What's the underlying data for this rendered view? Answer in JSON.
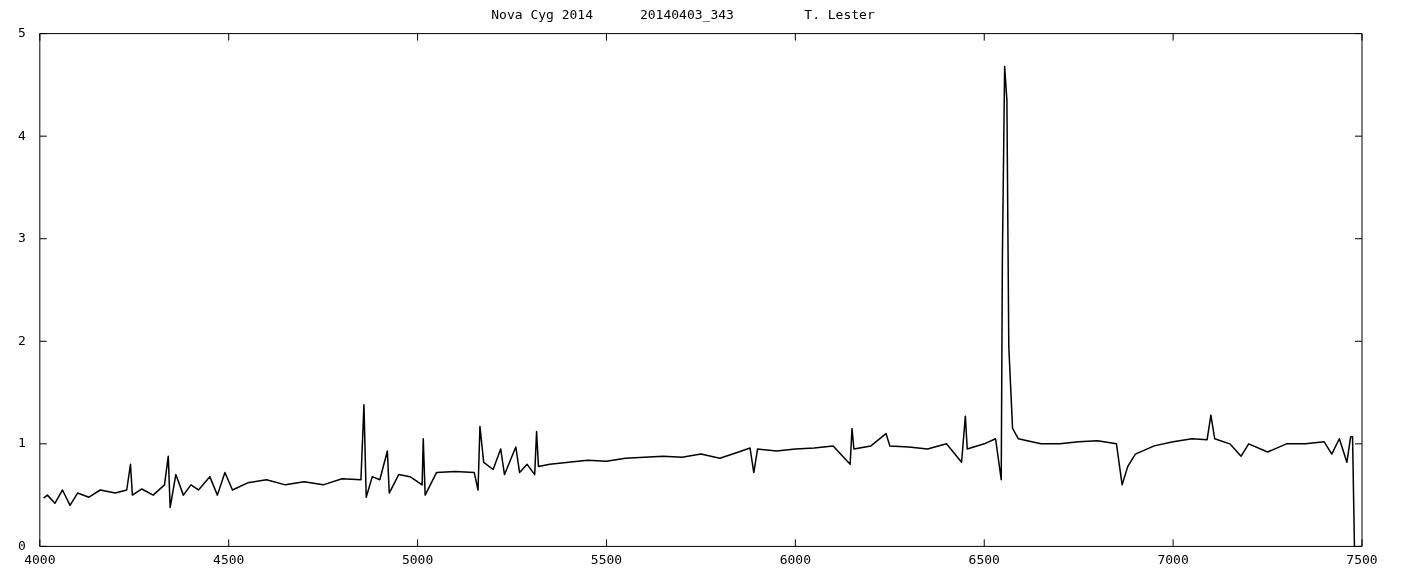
{
  "chart_data": {
    "type": "line",
    "title": "Nova Cyg 2014      20140403_343         T. Lester",
    "xlim": [
      4000,
      7500
    ],
    "xticks": [
      4000,
      4500,
      5000,
      5500,
      6000,
      6500,
      7000,
      7500
    ],
    "ylim": [
      0,
      5
    ],
    "yticks": [
      0,
      1,
      2,
      3,
      4,
      5
    ],
    "legend": false,
    "marker": "none",
    "line_style": "solid",
    "series": [
      {
        "color": "#000000",
        "x": [
          4010,
          4020,
          4040,
          4060,
          4080,
          4100,
          4130,
          4160,
          4200,
          4230,
          4240,
          4245,
          4270,
          4300,
          4330,
          4340,
          4345,
          4360,
          4380,
          4400,
          4420,
          4450,
          4470,
          4490,
          4510,
          4550,
          4600,
          4650,
          4700,
          4750,
          4800,
          4850,
          4858,
          4864,
          4880,
          4900,
          4920,
          4925,
          4950,
          4980,
          5012,
          5015,
          5020,
          5050,
          5100,
          5150,
          5160,
          5165,
          5175,
          5200,
          5220,
          5230,
          5260,
          5270,
          5290,
          5310,
          5315,
          5320,
          5350,
          5400,
          5450,
          5500,
          5550,
          5600,
          5650,
          5700,
          5750,
          5800,
          5850,
          5880,
          5890,
          5900,
          5950,
          6000,
          6050,
          6100,
          6145,
          6150,
          6155,
          6200,
          6240,
          6250,
          6300,
          6350,
          6400,
          6440,
          6450,
          6455,
          6500,
          6530,
          6545,
          6548,
          6554,
          6560,
          6565,
          6575,
          6590,
          6650,
          6700,
          6750,
          6800,
          6850,
          6865,
          6880,
          6900,
          6950,
          7000,
          7050,
          7090,
          7100,
          7110,
          7150,
          7180,
          7200,
          7250,
          7300,
          7350,
          7400,
          7420,
          7440,
          7460,
          7470,
          7475,
          7480
        ],
        "values": [
          0.47,
          0.5,
          0.42,
          0.55,
          0.4,
          0.52,
          0.48,
          0.55,
          0.52,
          0.55,
          0.8,
          0.5,
          0.56,
          0.5,
          0.6,
          0.88,
          0.38,
          0.7,
          0.5,
          0.6,
          0.55,
          0.68,
          0.5,
          0.72,
          0.55,
          0.62,
          0.65,
          0.6,
          0.63,
          0.6,
          0.66,
          0.65,
          1.38,
          0.48,
          0.68,
          0.65,
          0.93,
          0.52,
          0.7,
          0.68,
          0.6,
          1.05,
          0.5,
          0.72,
          0.73,
          0.72,
          0.55,
          1.17,
          0.82,
          0.75,
          0.95,
          0.7,
          0.97,
          0.72,
          0.8,
          0.7,
          1.12,
          0.78,
          0.8,
          0.82,
          0.84,
          0.83,
          0.86,
          0.87,
          0.88,
          0.87,
          0.9,
          0.86,
          0.92,
          0.96,
          0.72,
          0.95,
          0.93,
          0.95,
          0.96,
          0.98,
          0.8,
          1.15,
          0.95,
          0.98,
          1.1,
          0.98,
          0.97,
          0.95,
          1,
          0.82,
          1.27,
          0.95,
          1,
          1.05,
          0.65,
          2.8,
          4.68,
          4.35,
          1.95,
          1.15,
          1.05,
          1,
          1,
          1.02,
          1.03,
          1,
          0.6,
          0.78,
          0.9,
          0.98,
          1.02,
          1.05,
          1.04,
          1.28,
          1.05,
          1,
          0.88,
          1,
          0.92,
          1,
          1,
          1.02,
          0.9,
          1.05,
          0.82,
          1.07,
          1.07,
          0
        ]
      }
    ]
  }
}
